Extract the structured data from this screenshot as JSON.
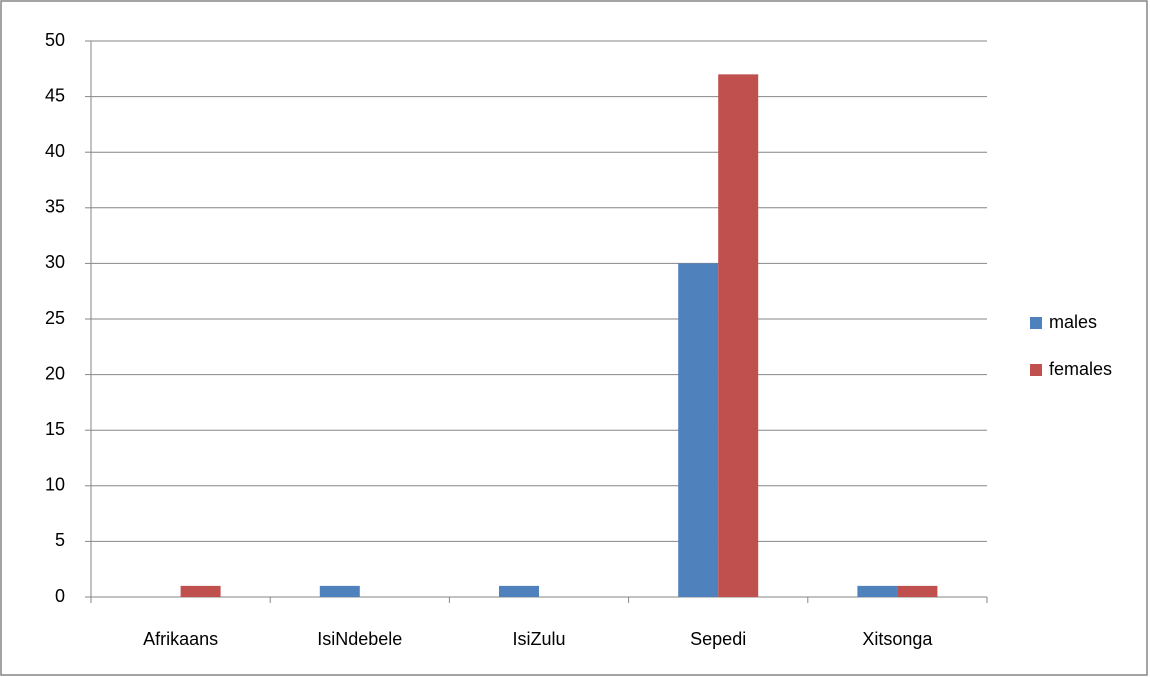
{
  "chart_data": {
    "type": "bar",
    "categories": [
      "Afrikaans",
      "IsiNdebele",
      "IsiZulu",
      "Sepedi",
      "Xitsonga"
    ],
    "series": [
      {
        "name": "males",
        "color": "#4f81bd",
        "values": [
          0,
          1,
          1,
          30,
          1
        ]
      },
      {
        "name": "females",
        "color": "#c0504d",
        "values": [
          1,
          0,
          0,
          47,
          1
        ]
      }
    ],
    "ylim": [
      0,
      50
    ],
    "yticks": [
      0,
      5,
      10,
      15,
      20,
      25,
      30,
      35,
      40,
      45,
      50
    ],
    "grid": true,
    "legend": "right"
  }
}
